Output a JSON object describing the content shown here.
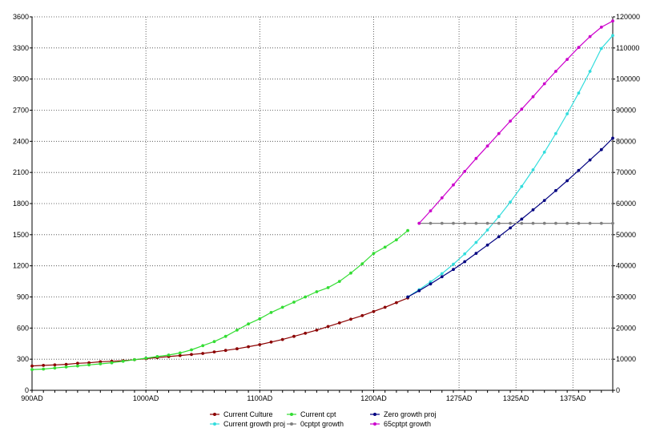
{
  "chart_data": {
    "type": "line",
    "title": "",
    "xlabel": "",
    "ylabel": "",
    "y2label": "",
    "x_ticks": [
      {
        "label": "900AD",
        "value": 900
      },
      {
        "label": "1000AD",
        "value": 1000
      },
      {
        "label": "1100AD",
        "value": 1100
      },
      {
        "label": "1200AD",
        "value": 1200
      },
      {
        "label": "1275AD",
        "value": 1275
      },
      {
        "label": "1325AD",
        "value": 1325
      },
      {
        "label": "1375AD",
        "value": 1375
      }
    ],
    "xlim": [
      900,
      1410
    ],
    "ylim": [
      0,
      3600
    ],
    "y_ticks": [
      0,
      300,
      600,
      900,
      1200,
      1500,
      1800,
      2100,
      2400,
      2700,
      3000,
      3300,
      3600
    ],
    "y2lim": [
      0,
      120000
    ],
    "y2_ticks": [
      0,
      10000,
      20000,
      30000,
      40000,
      50000,
      60000,
      70000,
      80000,
      90000,
      100000,
      110000,
      120000
    ],
    "grid": true,
    "legend_position": "bottom",
    "legend": [
      {
        "name": "Current Culture",
        "color": "#8b0000"
      },
      {
        "name": "Current cpt",
        "color": "#33dd33"
      },
      {
        "name": "Zero growth proj",
        "color": "#000080"
      },
      {
        "name": "Current growth proj",
        "color": "#33dddd"
      },
      {
        "name": "0cptpt growth",
        "color": "#808080"
      },
      {
        "name": "65cptpt growth",
        "color": "#cc00cc"
      }
    ],
    "series": [
      {
        "name": "Current Culture",
        "color": "#8b0000",
        "axis": "left",
        "x": [
          900,
          910,
          920,
          930,
          940,
          950,
          960,
          970,
          980,
          990,
          1000,
          1010,
          1020,
          1030,
          1040,
          1050,
          1060,
          1070,
          1080,
          1090,
          1100,
          1110,
          1120,
          1130,
          1140,
          1150,
          1160,
          1170,
          1180,
          1190,
          1200,
          1210,
          1220,
          1230
        ],
        "values": [
          235,
          240,
          245,
          250,
          260,
          265,
          275,
          280,
          285,
          295,
          305,
          315,
          325,
          335,
          345,
          355,
          370,
          385,
          400,
          420,
          440,
          465,
          490,
          520,
          550,
          580,
          615,
          650,
          685,
          720,
          760,
          800,
          845,
          890
        ]
      },
      {
        "name": "Current cpt",
        "color": "#33dd33",
        "axis": "left",
        "x": [
          900,
          910,
          920,
          930,
          940,
          950,
          960,
          970,
          980,
          990,
          1000,
          1010,
          1020,
          1030,
          1040,
          1050,
          1060,
          1070,
          1080,
          1090,
          1100,
          1110,
          1120,
          1130,
          1140,
          1150,
          1160,
          1170,
          1180,
          1190,
          1200,
          1210,
          1220,
          1230
        ],
        "values": [
          200,
          205,
          215,
          225,
          235,
          245,
          255,
          265,
          280,
          295,
          310,
          325,
          340,
          360,
          390,
          430,
          470,
          520,
          580,
          640,
          690,
          750,
          800,
          850,
          900,
          950,
          990,
          1050,
          1130,
          1220,
          1320,
          1380,
          1450,
          1540
        ]
      },
      {
        "name": "Current growth proj",
        "color": "#33dddd",
        "axis": "left",
        "x": [
          1230,
          1240,
          1250,
          1260,
          1270,
          1280,
          1290,
          1300,
          1310,
          1320,
          1330,
          1340,
          1350,
          1360,
          1370,
          1380,
          1390,
          1400,
          1410
        ],
        "values": [
          900,
          970,
          1045,
          1125,
          1215,
          1315,
          1425,
          1545,
          1675,
          1815,
          1965,
          2125,
          2295,
          2475,
          2665,
          2865,
          3075,
          3295,
          3420
        ]
      },
      {
        "name": "Zero growth proj",
        "color": "#000080",
        "axis": "left",
        "x": [
          1230,
          1240,
          1250,
          1260,
          1270,
          1280,
          1290,
          1300,
          1310,
          1320,
          1330,
          1340,
          1350,
          1360,
          1370,
          1380,
          1390,
          1400,
          1410
        ],
        "values": [
          900,
          960,
          1025,
          1095,
          1165,
          1240,
          1320,
          1400,
          1480,
          1565,
          1650,
          1740,
          1830,
          1925,
          2020,
          2120,
          2220,
          2320,
          2430
        ]
      },
      {
        "name": "0cptpt growth",
        "color": "#808080",
        "axis": "left",
        "x": [
          1240,
          1250,
          1260,
          1270,
          1280,
          1290,
          1300,
          1310,
          1320,
          1330,
          1340,
          1350,
          1360,
          1370,
          1380,
          1390,
          1400,
          1410
        ],
        "values": [
          1610,
          1610,
          1610,
          1610,
          1610,
          1610,
          1610,
          1610,
          1610,
          1610,
          1610,
          1610,
          1610,
          1610,
          1610,
          1610,
          1610,
          1610
        ]
      },
      {
        "name": "65cptpt growth",
        "color": "#cc00cc",
        "axis": "left",
        "x": [
          1240,
          1250,
          1260,
          1270,
          1280,
          1290,
          1300,
          1310,
          1320,
          1330,
          1340,
          1350,
          1360,
          1370,
          1380,
          1390,
          1400,
          1410
        ],
        "values": [
          1610,
          1730,
          1855,
          1980,
          2110,
          2235,
          2355,
          2475,
          2595,
          2710,
          2830,
          2955,
          3075,
          3190,
          3305,
          3410,
          3500,
          3560
        ]
      }
    ]
  }
}
